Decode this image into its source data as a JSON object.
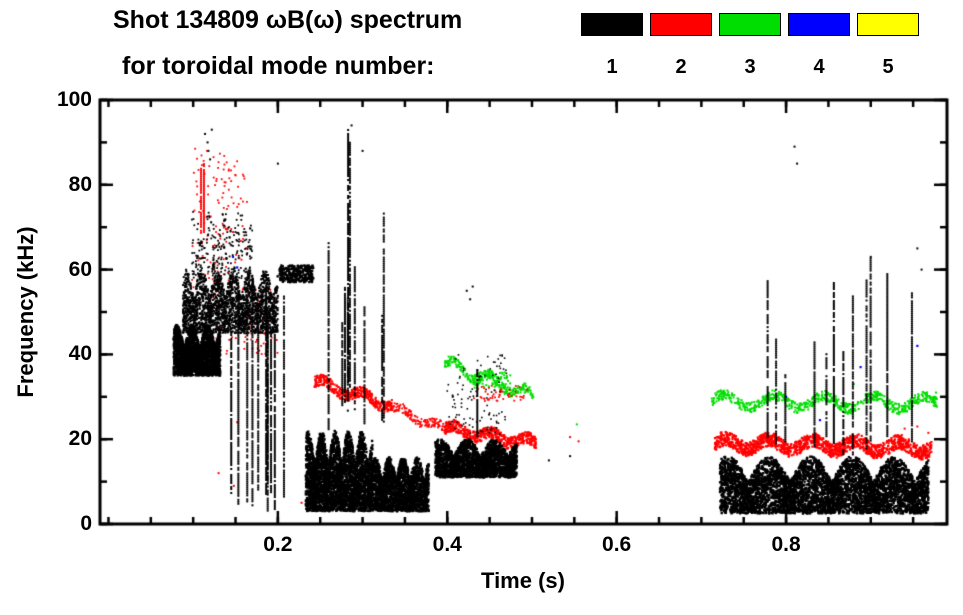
{
  "header": {
    "title": "Shot 134809 ωB(ω) spectrum",
    "subtitle": "for toroidal mode number:"
  },
  "legend": [
    {
      "label": "1",
      "color": "#000000"
    },
    {
      "label": "2",
      "color": "#ff0000"
    },
    {
      "label": "3",
      "color": "#00dd00"
    },
    {
      "label": "4",
      "color": "#0000ff"
    },
    {
      "label": "5",
      "color": "#ffff00"
    }
  ],
  "chart_data": {
    "type": "scatter",
    "title": "Shot 134809 ωB(ω) spectrum for toroidal mode number 1-5",
    "xlabel": "Time (s)",
    "ylabel": "Frequency (kHz)",
    "xlim": [
      -0.01,
      0.99
    ],
    "ylim": [
      0,
      100
    ],
    "x_ticks": [
      {
        "v": 0.2,
        "label": "0.2"
      },
      {
        "v": 0.4,
        "label": "0.4"
      },
      {
        "v": 0.6,
        "label": "0.6"
      },
      {
        "v": 0.8,
        "label": "0.8"
      }
    ],
    "y_ticks": [
      {
        "v": 0,
        "label": "0"
      },
      {
        "v": 20,
        "label": "20"
      },
      {
        "v": 40,
        "label": "40"
      },
      {
        "v": 60,
        "label": "60"
      },
      {
        "v": 80,
        "label": "80"
      },
      {
        "v": 100,
        "label": "100"
      }
    ],
    "x_minor_step": 0.05,
    "y_minor_step": 10,
    "grid": false,
    "legend_position": "top-right",
    "clusters": [
      {
        "type": "hband",
        "mode": 3,
        "seed": 31,
        "n": 260,
        "t": [
          0.397,
          0.503
        ],
        "f": [
          38,
          30
        ],
        "th": 2.2,
        "wob": 1.2,
        "lumps": 5,
        "size": 2
      },
      {
        "type": "scatter",
        "mode": 3,
        "seed": 32,
        "n": 70,
        "t": [
          0.43,
          0.475
        ],
        "f": [
          32,
          36
        ],
        "size": 2
      },
      {
        "type": "hband",
        "mode": 3,
        "seed": 33,
        "n": 680,
        "t": [
          0.712,
          0.978
        ],
        "f": [
          29,
          28.5
        ],
        "th": 2.4,
        "wob": 1.5,
        "lumps": 9,
        "size": 2
      },
      {
        "type": "dots",
        "mode": 3,
        "size": 2,
        "pts": [
          [
            0.553,
            23.5
          ],
          [
            0.977,
            31
          ],
          [
            0.88,
            33
          ]
        ]
      },
      {
        "type": "scatter",
        "mode": 2,
        "seed": 21,
        "n": 130,
        "t": [
          0.098,
          0.165
        ],
        "f": [
          55,
          89
        ],
        "size": 1.8
      },
      {
        "type": "vlines",
        "mode": 2,
        "seed": 22,
        "lines": 2,
        "t": [
          0.104,
          0.118
        ],
        "fb": [
          68,
          72
        ],
        "ft": [
          84,
          89
        ],
        "w": 2
      },
      {
        "type": "scatter",
        "mode": 2,
        "seed": 23,
        "n": 90,
        "t": [
          0.115,
          0.2
        ],
        "f": [
          40,
          56
        ],
        "size": 1.8
      },
      {
        "type": "dots",
        "mode": 2,
        "size": 2,
        "pts": [
          [
            0.148,
            9
          ],
          [
            0.152,
            24
          ],
          [
            0.228,
            5
          ],
          [
            0.13,
            12
          ]
        ]
      },
      {
        "type": "hband",
        "mode": 2,
        "seed": 24,
        "n": 420,
        "t": [
          0.243,
          0.335
        ],
        "f": [
          33.5,
          28
        ],
        "th": 2.6,
        "wob": 1,
        "lumps": 4,
        "size": 2
      },
      {
        "type": "hband",
        "mode": 2,
        "seed": 25,
        "n": 150,
        "t": [
          0.335,
          0.4
        ],
        "f": [
          27.5,
          22
        ],
        "th": 2.2,
        "wob": 0.8,
        "lumps": 3,
        "size": 1.8
      },
      {
        "type": "hband",
        "mode": 2,
        "seed": 26,
        "n": 430,
        "t": [
          0.398,
          0.505
        ],
        "f": [
          22.5,
          19
        ],
        "th": 2.8,
        "wob": 1,
        "lumps": 5,
        "size": 2.2
      },
      {
        "type": "scatter",
        "mode": 2,
        "seed": 27,
        "n": 50,
        "t": [
          0.43,
          0.5
        ],
        "f": [
          29,
          33
        ],
        "size": 1.8
      },
      {
        "type": "dots",
        "mode": 2,
        "size": 2,
        "pts": [
          [
            0.545,
            20.5
          ],
          [
            0.555,
            19.5
          ]
        ]
      },
      {
        "type": "hband",
        "mode": 2,
        "seed": 28,
        "n": 1250,
        "t": [
          0.716,
          0.972
        ],
        "f": [
          19,
          18
        ],
        "th": 3.4,
        "wob": 1.2,
        "lumps": 10,
        "size": 2.2
      },
      {
        "type": "dots",
        "mode": 2,
        "size": 2,
        "pts": [
          [
            0.94,
            22.5
          ],
          [
            0.955,
            23
          ],
          [
            0.968,
            21.5
          ]
        ]
      },
      {
        "type": "dots",
        "mode": 4,
        "size": 2.2,
        "pts": [
          [
            0.147,
            63
          ],
          [
            0.152,
            60.5
          ],
          [
            0.84,
            24.5
          ],
          [
            0.888,
            37
          ],
          [
            0.955,
            42
          ],
          [
            0.8,
            30
          ]
        ]
      },
      {
        "type": "scatter",
        "mode": 1,
        "seed": 11,
        "n": 2600,
        "t": [
          0.077,
          0.132
        ],
        "f": [
          35,
          47
        ],
        "size": 2.2,
        "lumps": 3
      },
      {
        "type": "scatter",
        "mode": 1,
        "seed": 12,
        "n": 2200,
        "t": [
          0.088,
          0.2
        ],
        "f": [
          45,
          60
        ],
        "size": 2,
        "lumps": 6
      },
      {
        "type": "scatter",
        "mode": 1,
        "seed": 13,
        "n": 260,
        "t": [
          0.098,
          0.17
        ],
        "f": [
          58,
          74
        ],
        "size": 1.8,
        "lumps": 4
      },
      {
        "type": "dots",
        "mode": 1,
        "size": 2,
        "pts": [
          [
            0.114,
            92
          ],
          [
            0.118,
            88
          ],
          [
            0.12,
            86
          ],
          [
            0.122,
            93
          ],
          [
            0.117,
            90
          ],
          [
            0.2,
            85
          ]
        ]
      },
      {
        "type": "vlines",
        "mode": 1,
        "seed": 14,
        "lines": 11,
        "t": [
          0.128,
          0.208
        ],
        "fb": [
          3,
          9
        ],
        "ft": [
          45,
          62
        ],
        "w": 2
      },
      {
        "type": "scatter",
        "mode": 1,
        "seed": 15,
        "n": 320,
        "t": [
          0.202,
          0.242
        ],
        "f": [
          57,
          61
        ],
        "size": 2.2
      },
      {
        "type": "scatter",
        "mode": 1,
        "seed": 16,
        "n": 3000,
        "t": [
          0.233,
          0.312
        ],
        "f": [
          3,
          22
        ],
        "size": 2.4,
        "lumps": 5
      },
      {
        "type": "scatter",
        "mode": 1,
        "seed": 17,
        "n": 1900,
        "t": [
          0.312,
          0.378
        ],
        "f": [
          3,
          16
        ],
        "size": 2.4,
        "lumps": 4
      },
      {
        "type": "vlines",
        "mode": 1,
        "seed": 18,
        "lines": 8,
        "t": [
          0.255,
          0.345
        ],
        "fb": [
          22,
          30
        ],
        "ft": [
          45,
          75
        ],
        "w": 2
      },
      {
        "type": "vlines",
        "mode": 1,
        "seed": 19,
        "lines": 2,
        "t": [
          0.282,
          0.298
        ],
        "fb": [
          30,
          40
        ],
        "ft": [
          90,
          97
        ],
        "w": 2
      },
      {
        "type": "dots",
        "mode": 1,
        "size": 2,
        "pts": [
          [
            0.3,
            88
          ],
          [
            0.287,
            94
          ]
        ]
      },
      {
        "type": "scatter",
        "mode": 1,
        "seed": 110,
        "n": 2000,
        "t": [
          0.386,
          0.482
        ],
        "f": [
          11,
          20
        ],
        "size": 2.4,
        "lumps": 3
      },
      {
        "type": "scatter",
        "mode": 1,
        "seed": 111,
        "n": 110,
        "t": [
          0.4,
          0.47
        ],
        "f": [
          21,
          40
        ],
        "size": 1.6
      },
      {
        "type": "vlines",
        "mode": 1,
        "seed": 112,
        "lines": 1,
        "t": [
          0.433,
          0.437
        ],
        "fb": [
          20,
          21
        ],
        "ft": [
          36,
          37
        ],
        "w": 2
      },
      {
        "type": "dots",
        "mode": 1,
        "size": 2,
        "pts": [
          [
            0.423,
            55
          ],
          [
            0.427,
            53
          ],
          [
            0.43,
            56
          ],
          [
            0.52,
            15
          ],
          [
            0.545,
            16
          ]
        ]
      },
      {
        "type": "scatter",
        "mode": 1,
        "seed": 113,
        "n": 4800,
        "t": [
          0.722,
          0.968
        ],
        "f": [
          2.5,
          16
        ],
        "size": 2.4,
        "lumps": 5
      },
      {
        "type": "vlines",
        "mode": 1,
        "seed": 114,
        "lines": 12,
        "t": [
          0.77,
          0.965
        ],
        "fb": [
          16,
          22
        ],
        "ft": [
          32,
          64
        ],
        "w": 2
      },
      {
        "type": "dots",
        "mode": 1,
        "size": 2,
        "pts": [
          [
            0.81,
            89
          ],
          [
            0.813,
            85
          ],
          [
            0.9,
            63
          ],
          [
            0.955,
            65
          ],
          [
            0.96,
            60
          ]
        ]
      }
    ]
  }
}
